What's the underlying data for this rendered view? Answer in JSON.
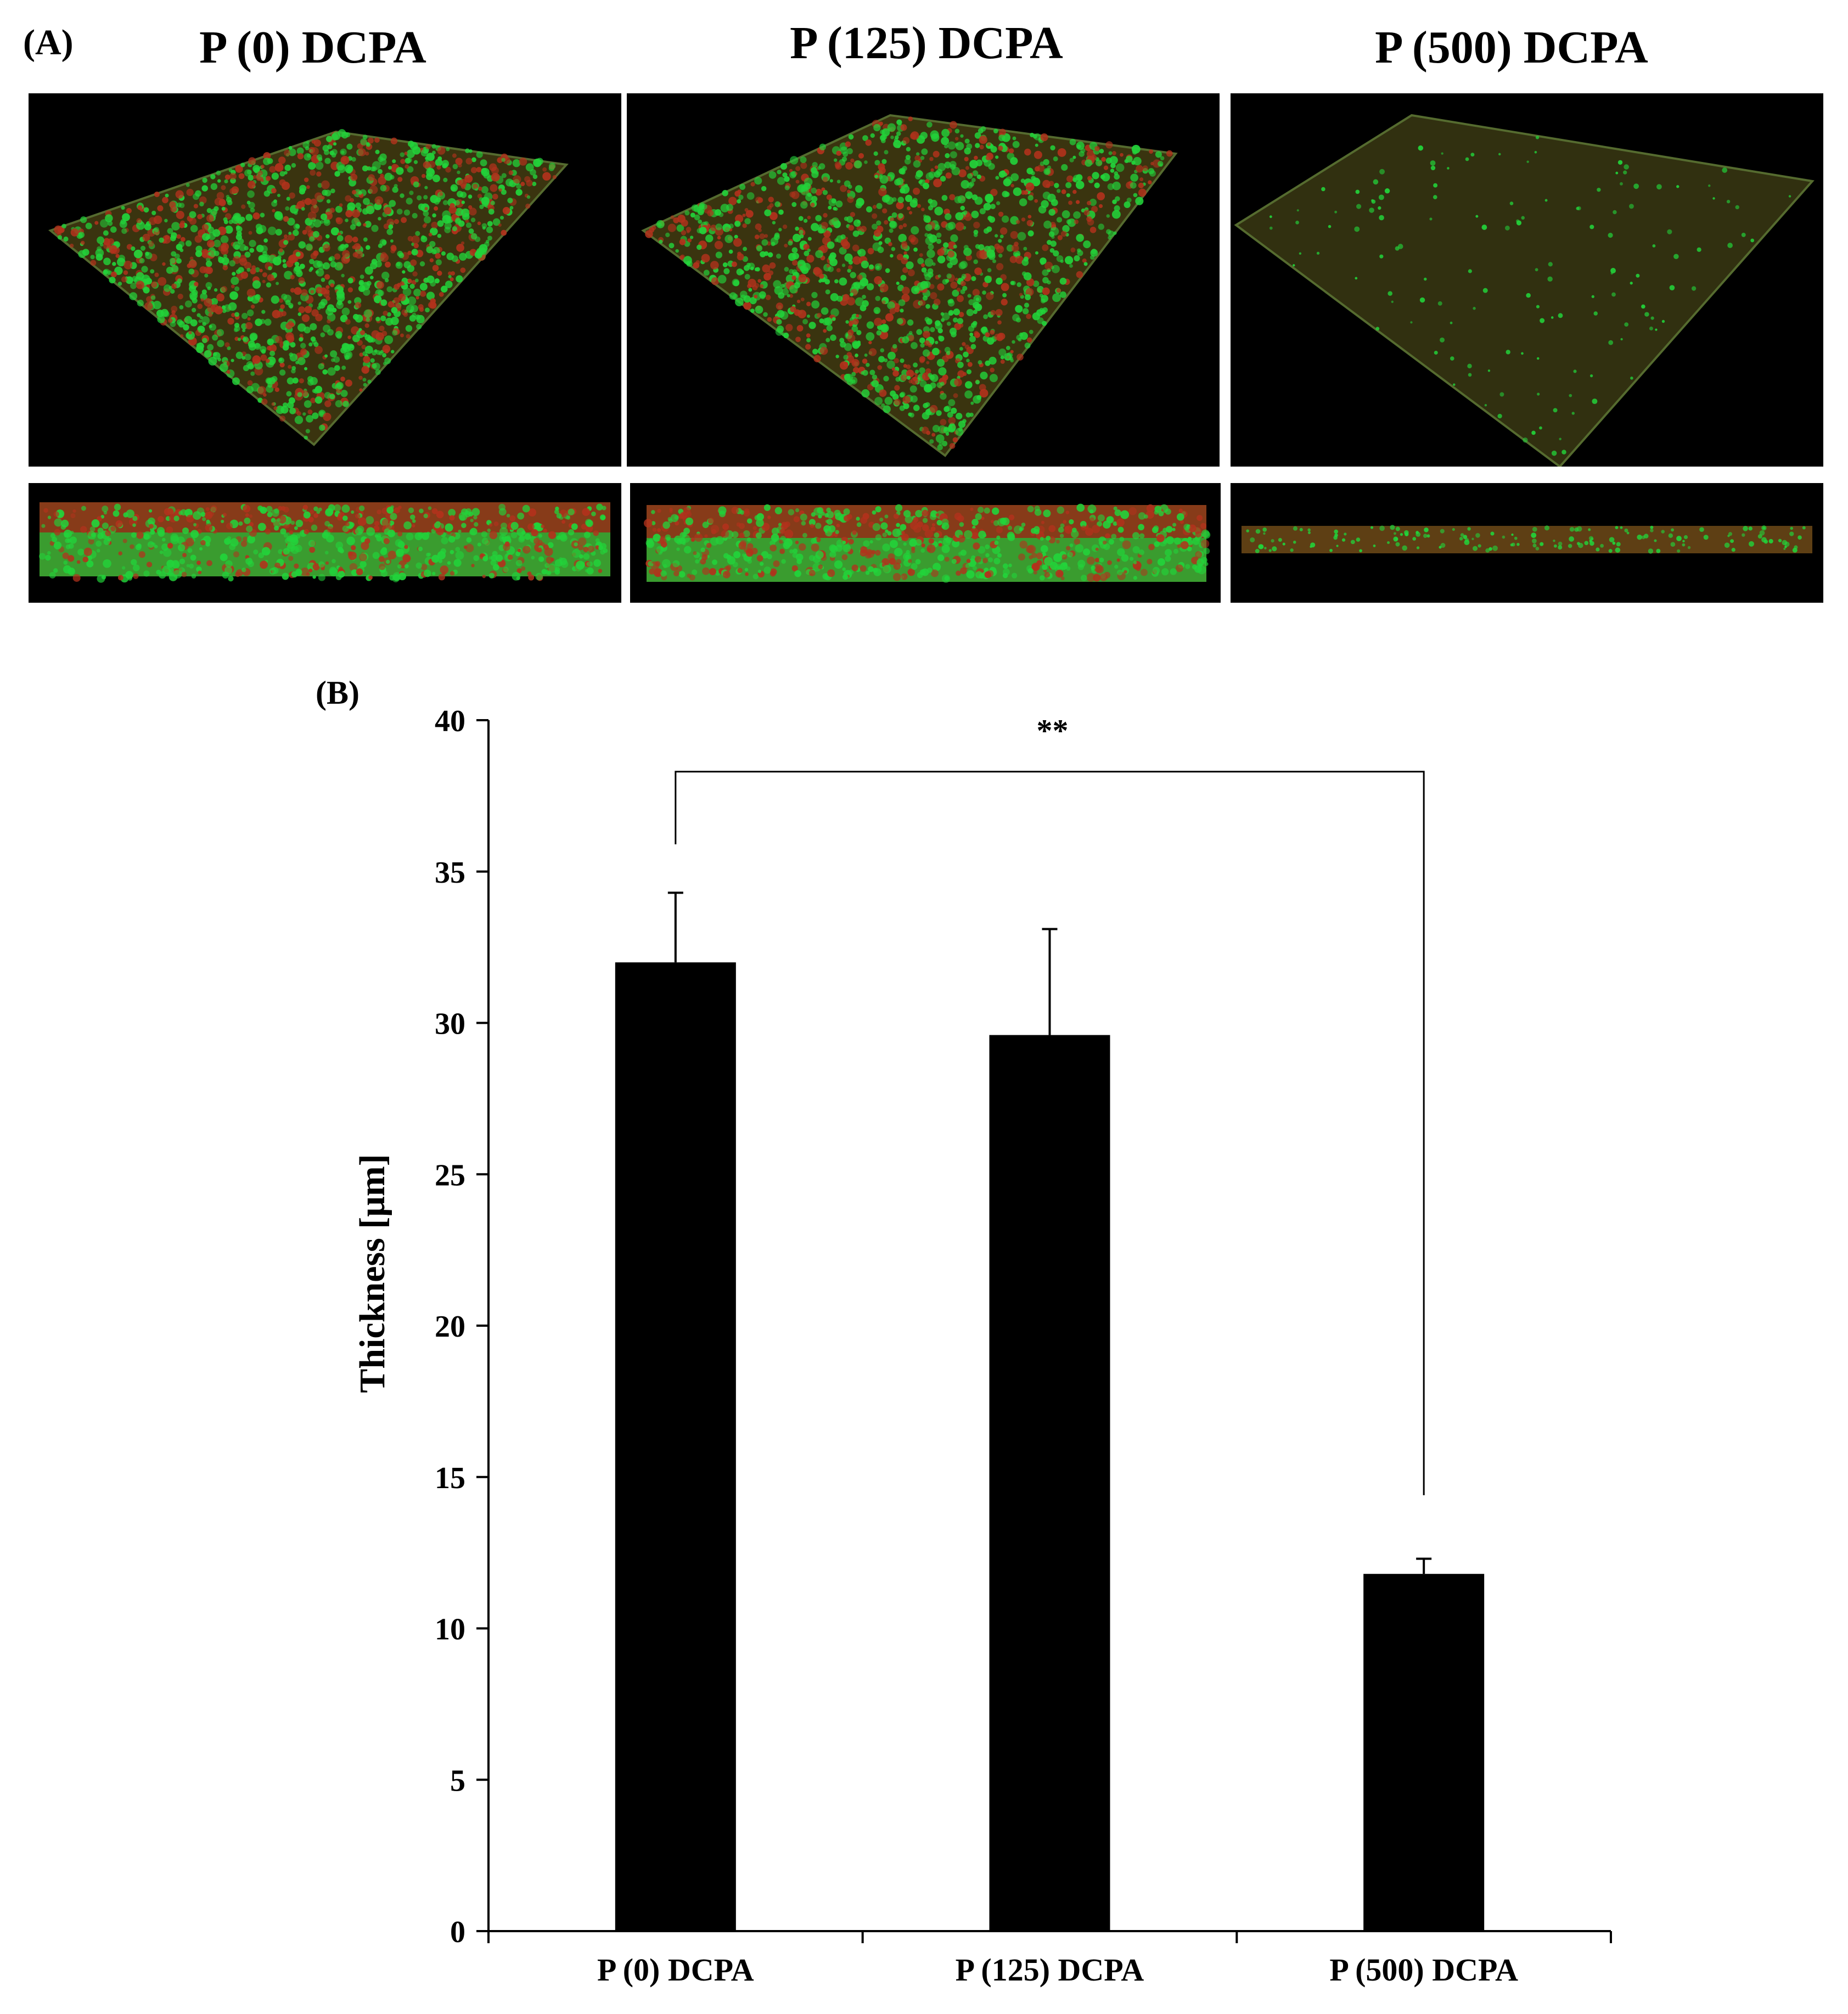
{
  "panel_a": {
    "label": "(A)",
    "titles": [
      "P (0) DCPA",
      "P (125) DCPA",
      "P (500) DCPA"
    ]
  },
  "panel_b": {
    "label": "(B)"
  },
  "colors": {
    "bar": "#000000",
    "biofilm_green": "#22d33a",
    "biofilm_red": "#b2321c",
    "image_bg": "#000000"
  },
  "chart_data": {
    "type": "bar",
    "categories": [
      "P (0) DCPA",
      "P (125) DCPA",
      "P (500) DCPA"
    ],
    "values": [
      32.0,
      29.6,
      11.8
    ],
    "errors": [
      2.3,
      3.5,
      0.5
    ],
    "ylabel": "Thickness [μm]",
    "xlabel": "",
    "ylim": [
      0,
      40
    ],
    "yticks": [
      0,
      5,
      10,
      15,
      20,
      25,
      30,
      35,
      40
    ],
    "grid": false,
    "significance": {
      "from": 0,
      "to": 2,
      "label": "**"
    }
  }
}
